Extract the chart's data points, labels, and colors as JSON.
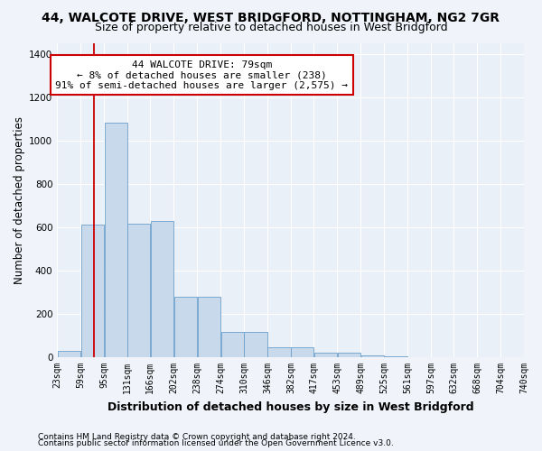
{
  "title": "44, WALCOTE DRIVE, WEST BRIDGFORD, NOTTINGHAM, NG2 7GR",
  "subtitle": "Size of property relative to detached houses in West Bridgford",
  "xlabel": "Distribution of detached houses by size in West Bridgford",
  "ylabel": "Number of detached properties",
  "footnote1": "Contains HM Land Registry data © Crown copyright and database right 2024.",
  "footnote2": "Contains public sector information licensed under the Open Government Licence v3.0.",
  "bin_labels": [
    "23sqm",
    "59sqm",
    "95sqm",
    "131sqm",
    "166sqm",
    "202sqm",
    "238sqm",
    "274sqm",
    "310sqm",
    "346sqm",
    "382sqm",
    "417sqm",
    "453sqm",
    "489sqm",
    "525sqm",
    "561sqm",
    "597sqm",
    "632sqm",
    "668sqm",
    "704sqm",
    "740sqm"
  ],
  "bar_values": [
    30,
    610,
    1080,
    615,
    630,
    280,
    280,
    118,
    118,
    45,
    45,
    22,
    20,
    8,
    3,
    0,
    0,
    0,
    0,
    0
  ],
  "bar_color": "#c9d9ec",
  "bar_edge_color": "#6a9fca",
  "ylim": [
    0,
    1450
  ],
  "yticks": [
    0,
    200,
    400,
    600,
    800,
    1000,
    1200,
    1400
  ],
  "vline_color": "#cc0000",
  "annotation_text": "44 WALCOTE DRIVE: 79sqm\n← 8% of detached houses are smaller (238)\n91% of semi-detached houses are larger (2,575) →",
  "annotation_box_color": "#ffffff",
  "annotation_box_edge": "#cc0000",
  "bg_color": "#f0f4fa",
  "axes_bg_color": "#eaf0f8",
  "grid_color": "#ffffff",
  "title_fontsize": 10,
  "subtitle_fontsize": 9,
  "axis_label_fontsize": 8.5,
  "tick_fontsize": 7,
  "annotation_fontsize": 8,
  "footnote_fontsize": 6.5
}
